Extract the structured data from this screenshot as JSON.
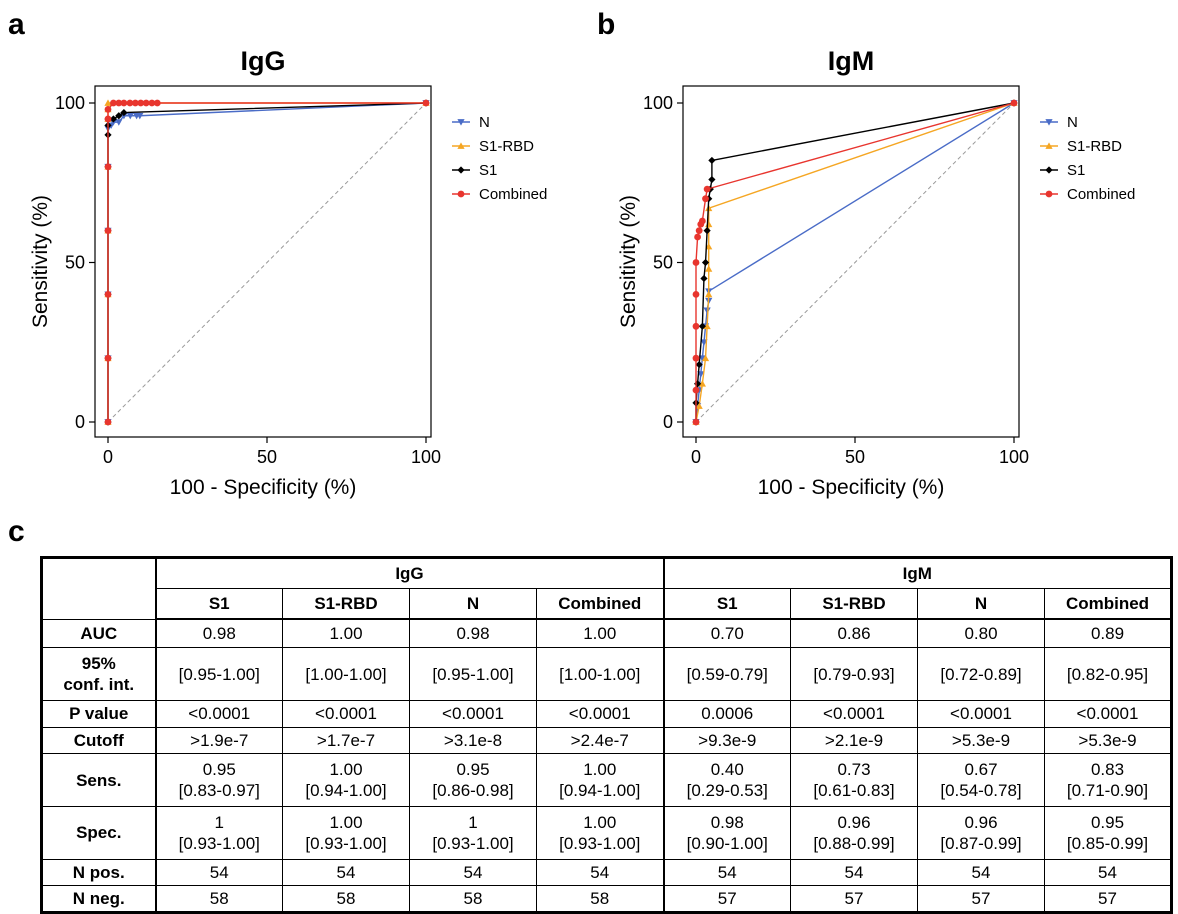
{
  "panels": {
    "a": "a",
    "b": "b",
    "c": "c"
  },
  "chart_data": [
    {
      "type": "line",
      "title": "IgG",
      "xlabel": "100 - Specificity (%)",
      "ylabel": "Sensitivity (%)",
      "xlim": [
        0,
        100
      ],
      "ylim": [
        0,
        100
      ],
      "xticks": [
        "0",
        "50",
        "100"
      ],
      "yticks": [
        "0",
        "50",
        "100"
      ],
      "reference_line": true,
      "legend_position": "right",
      "series": [
        {
          "name": "N",
          "color": "#4a6cc7",
          "marker": "triangle-down",
          "x": [
            0,
            0,
            0,
            0,
            0,
            0,
            1,
            1.7,
            3.4,
            5,
            7,
            9,
            10,
            100
          ],
          "y": [
            0,
            20,
            40,
            60,
            80,
            92,
            93,
            94,
            94,
            96,
            96,
            96,
            96,
            100
          ]
        },
        {
          "name": "S1-RBD",
          "color": "#f5a623",
          "marker": "triangle-up",
          "x": [
            0,
            0,
            0,
            0,
            0,
            0,
            0,
            0,
            100
          ],
          "y": [
            0,
            20,
            40,
            60,
            80,
            95,
            98,
            100,
            100
          ]
        },
        {
          "name": "S1",
          "color": "#000000",
          "marker": "diamond",
          "x": [
            0,
            0,
            0,
            0,
            0,
            0,
            0,
            0,
            1.7,
            3.4,
            5,
            100
          ],
          "y": [
            0,
            20,
            40,
            60,
            80,
            90,
            93,
            95,
            95,
            96,
            97,
            100
          ]
        },
        {
          "name": "Combined",
          "color": "#e8352e",
          "marker": "circle",
          "x": [
            0,
            0,
            0,
            0,
            0,
            0,
            0,
            1.7,
            3.4,
            5,
            6.9,
            8.6,
            10.3,
            12,
            13.8,
            15.5,
            100
          ],
          "y": [
            0,
            20,
            40,
            60,
            80,
            95,
            98,
            100,
            100,
            100,
            100,
            100,
            100,
            100,
            100,
            100,
            100
          ]
        }
      ]
    },
    {
      "type": "line",
      "title": "IgM",
      "xlabel": "100 - Specificity (%)",
      "ylabel": "Sensitivity (%)",
      "xlim": [
        0,
        100
      ],
      "ylim": [
        0,
        100
      ],
      "xticks": [
        "0",
        "50",
        "100"
      ],
      "yticks": [
        "0",
        "50",
        "100"
      ],
      "reference_line": true,
      "legend_position": "right",
      "series": [
        {
          "name": "N",
          "color": "#4a6cc7",
          "marker": "triangle-down",
          "x": [
            0,
            0.5,
            1,
            1.5,
            2,
            2.5,
            3,
            3.5,
            4,
            4,
            100
          ],
          "y": [
            0,
            5,
            10,
            15,
            20,
            25,
            30,
            35,
            38,
            41,
            100
          ]
        },
        {
          "name": "S1-RBD",
          "color": "#f5a623",
          "marker": "triangle-up",
          "x": [
            0,
            1,
            2,
            3,
            3.5,
            4,
            4,
            4,
            4,
            4,
            100
          ],
          "y": [
            0,
            5,
            12,
            20,
            30,
            40,
            48,
            55,
            62,
            67,
            100
          ]
        },
        {
          "name": "S1",
          "color": "#000000",
          "marker": "diamond",
          "x": [
            0,
            0,
            0.5,
            1,
            2,
            2.5,
            3,
            3.5,
            4,
            4.5,
            5,
            5,
            100
          ],
          "y": [
            0,
            6,
            12,
            18,
            30,
            45,
            50,
            60,
            70,
            73,
            76,
            82,
            100
          ]
        },
        {
          "name": "Combined",
          "color": "#e8352e",
          "marker": "circle",
          "x": [
            0,
            0,
            0,
            0,
            0,
            0,
            0.5,
            1,
            1.5,
            2,
            3,
            3.5,
            100
          ],
          "y": [
            0,
            10,
            20,
            30,
            40,
            50,
            58,
            60,
            62,
            63,
            70,
            73,
            100
          ]
        }
      ]
    }
  ],
  "table": {
    "groups": [
      "IgG",
      "IgM"
    ],
    "columns": [
      "S1",
      "S1-RBD",
      "N",
      "Combined",
      "S1",
      "S1-RBD",
      "N",
      "Combined"
    ],
    "rows": [
      {
        "label": "AUC",
        "values": [
          "0.98",
          "1.00",
          "0.98",
          "1.00",
          "0.70",
          "0.86",
          "0.80",
          "0.89"
        ]
      },
      {
        "label": "95%\nconf. int.",
        "values": [
          "[0.95-1.00]",
          "[1.00-1.00]",
          "[0.95-1.00]",
          "[1.00-1.00]",
          "[0.59-0.79]",
          "[0.79-0.93]",
          "[0.72-0.89]",
          "[0.82-0.95]"
        ]
      },
      {
        "label": "P value",
        "values": [
          "<0.0001",
          "<0.0001",
          "<0.0001",
          "<0.0001",
          "0.0006",
          "<0.0001",
          "<0.0001",
          "<0.0001"
        ]
      },
      {
        "label": "Cutoff",
        "values": [
          ">1.9e-7",
          ">1.7e-7",
          ">3.1e-8",
          ">2.4e-7",
          ">9.3e-9",
          ">2.1e-9",
          ">5.3e-9",
          ">5.3e-9"
        ]
      },
      {
        "label": "Sens.",
        "values": [
          "0.95\n[0.83-0.97]",
          "1.00\n[0.94-1.00]",
          "0.95\n[0.86-0.98]",
          "1.00\n[0.94-1.00]",
          "0.40\n[0.29-0.53]",
          "0.73\n[0.61-0.83]",
          "0.67\n[0.54-0.78]",
          "0.83\n[0.71-0.90]"
        ]
      },
      {
        "label": "Spec.",
        "values": [
          "1\n[0.93-1.00]",
          "1.00\n[0.93-1.00]",
          "1\n[0.93-1.00]",
          "1.00\n[0.93-1.00]",
          "0.98\n[0.90-1.00]",
          "0.96\n[0.88-0.99]",
          "0.96\n[0.87-0.99]",
          "0.95\n[0.85-0.99]"
        ]
      },
      {
        "label": "N pos.",
        "values": [
          "54",
          "54",
          "54",
          "54",
          "54",
          "54",
          "54",
          "54"
        ]
      },
      {
        "label": "N neg.",
        "values": [
          "58",
          "58",
          "58",
          "58",
          "57",
          "57",
          "57",
          "57"
        ]
      }
    ]
  }
}
